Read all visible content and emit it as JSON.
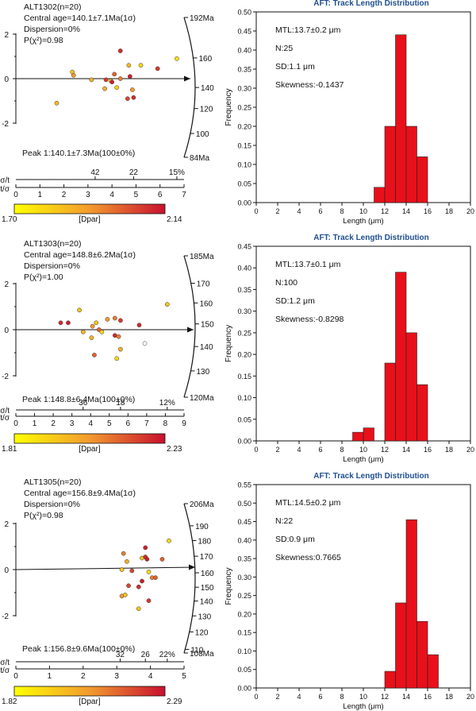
{
  "colorbar": {
    "low_color": "#ffff00",
    "high_color": "#c8102e"
  },
  "chart_data": [
    {
      "type": "radial",
      "sample_label": "ALT1302(n=20)",
      "central_age": "Central age=140.1±7.1Ma(1σ)",
      "dispersion": "Dispersion=0%",
      "p_chi2": "P(χ²)=0.98",
      "peak_label": "Peak 1:140.1±7.3Ma(100±0%)",
      "z_ticks": [
        "2",
        "0",
        "-2"
      ],
      "arc_ticks": [
        {
          "label": "192Ma",
          "age": 192
        },
        {
          "label": "160",
          "age": 160
        },
        {
          "label": "140",
          "age": 140
        },
        {
          "label": "120",
          "age": 120
        },
        {
          "label": "100",
          "age": 100
        },
        {
          "label": "84Ma",
          "age": 84
        }
      ],
      "central_age_value": 140.1,
      "sigma_t_label": "σ/t",
      "sigma_ticks": [
        {
          "label": "42",
          "x": 3.3
        },
        {
          "label": "22",
          "x": 4.9
        },
        {
          "label": "15%",
          "x": 6.7
        }
      ],
      "t_sigma_label": "t/σ",
      "t_sigma_ticks": [
        "0",
        "1",
        "2",
        "3",
        "4",
        "5",
        "6",
        "7"
      ],
      "t_sigma_max": 7,
      "dpar_label": "[Dpar]",
      "dpar_min": "1.70",
      "dpar_max": "2.14",
      "points": [
        {
          "x": 4.35,
          "z": 1.25,
          "d": 0.9
        },
        {
          "x": 6.7,
          "z": 0.9,
          "d": 0.15
        },
        {
          "x": 5.2,
          "z": 0.6,
          "d": 0.2
        },
        {
          "x": 4.7,
          "z": 0.6,
          "d": 0.35
        },
        {
          "x": 5.9,
          "z": 0.45,
          "d": 0.85
        },
        {
          "x": 2.35,
          "z": 0.3,
          "d": 0.3
        },
        {
          "x": 2.4,
          "z": 0.15,
          "d": 0.5
        },
        {
          "x": 4.1,
          "z": 0.2,
          "d": 0.7
        },
        {
          "x": 4.75,
          "z": 0.1,
          "d": 0.95
        },
        {
          "x": 3.75,
          "z": -0.05,
          "d": 0.85
        },
        {
          "x": 3.95,
          "z": -0.1,
          "d": 0.2
        },
        {
          "x": 4.0,
          "z": -0.15,
          "d": 0.95
        },
        {
          "x": 4.35,
          "z": 0.0,
          "d": 0.6
        },
        {
          "x": 3.15,
          "z": -0.05,
          "d": 0.4
        },
        {
          "x": 4.2,
          "z": -0.4,
          "d": 0.25
        },
        {
          "x": 4.85,
          "z": -0.5,
          "d": 0.5
        },
        {
          "x": 3.7,
          "z": -0.45,
          "d": 0.4
        },
        {
          "x": 4.65,
          "z": -0.9,
          "d": 0.8
        },
        {
          "x": 4.9,
          "z": -0.85,
          "d": 0.9
        },
        {
          "x": 1.7,
          "z": -1.1,
          "d": 0.35
        }
      ]
    },
    {
      "type": "bar",
      "title": "AFT: Track Length Distribution",
      "xlabel": "Length (μm)",
      "ylabel": "Frequency",
      "x_ticks": [
        "0",
        "2",
        "4",
        "6",
        "8",
        "10",
        "12",
        "14",
        "16",
        "18",
        "20"
      ],
      "y_ticks": [
        "0.00",
        "0.05",
        "0.10",
        "0.15",
        "0.20",
        "0.25",
        "0.30",
        "0.35",
        "0.40",
        "0.45",
        "0.50"
      ],
      "ylim": [
        0,
        0.5
      ],
      "xlim": [
        0,
        20
      ],
      "bin_width": 1,
      "bars": [
        {
          "x0": 11,
          "value": 0.04
        },
        {
          "x0": 12,
          "value": 0.2
        },
        {
          "x0": 13,
          "value": 0.44
        },
        {
          "x0": 14,
          "value": 0.2
        },
        {
          "x0": 15,
          "value": 0.12
        }
      ],
      "stats": [
        "MTL:13.7±0.2 μm",
        "N:25",
        "SD:1.1 μm",
        "Skewness:-0.1437"
      ]
    },
    {
      "type": "radial",
      "sample_label": "ALT1303(n=20)",
      "central_age": "Central age=148.8±6.2Ma(1σ)",
      "dispersion": "Dispersion=0%",
      "p_chi2": "P(χ²)=1.00",
      "peak_label": "Peak 1:148.8±6.4Ma(100±0%)",
      "z_ticks": [
        "2",
        "0",
        "-2"
      ],
      "arc_ticks": [
        {
          "label": "185Ma",
          "age": 185
        },
        {
          "label": "170",
          "age": 170
        },
        {
          "label": "160",
          "age": 160
        },
        {
          "label": "150",
          "age": 150
        },
        {
          "label": "140",
          "age": 140
        },
        {
          "label": "130",
          "age": 130
        },
        {
          "label": "120Ma",
          "age": 120
        }
      ],
      "central_age_value": 148.8,
      "sigma_t_label": "σ/t",
      "sigma_ticks": [
        {
          "label": "36",
          "x": 3.6
        },
        {
          "label": "18",
          "x": 5.6
        },
        {
          "label": "12%",
          "x": 8.1
        }
      ],
      "t_sigma_label": "t/σ",
      "t_sigma_ticks": [
        "0",
        "1",
        "2",
        "3",
        "4",
        "5",
        "6",
        "7",
        "8",
        "9"
      ],
      "t_sigma_max": 9,
      "dpar_label": "[Dpar]",
      "dpar_min": "1.81",
      "dpar_max": "2.23",
      "points": [
        {
          "x": 8.1,
          "z": 1.1,
          "d": 0.3
        },
        {
          "x": 3.4,
          "z": 0.85,
          "d": 0.3
        },
        {
          "x": 5.3,
          "z": 0.5,
          "d": 0.6
        },
        {
          "x": 5.6,
          "z": 0.4,
          "d": 0.85
        },
        {
          "x": 4.9,
          "z": 0.45,
          "d": 0.5
        },
        {
          "x": 2.4,
          "z": 0.3,
          "d": 0.9
        },
        {
          "x": 2.8,
          "z": 0.3,
          "d": 0.95
        },
        {
          "x": 4.3,
          "z": 0.3,
          "d": 0.3
        },
        {
          "x": 6.6,
          "z": 0.2,
          "d": 0.9
        },
        {
          "x": 4.1,
          "z": 0.15,
          "d": 0.5
        },
        {
          "x": 4.45,
          "z": 0.0,
          "d": 0.7
        },
        {
          "x": 4.6,
          "z": -0.1,
          "d": 0.2
        },
        {
          "x": 3.6,
          "z": -0.1,
          "d": 0.35
        },
        {
          "x": 5.3,
          "z": -0.25,
          "d": 0.9
        },
        {
          "x": 5.5,
          "z": -0.3,
          "d": 0.6
        },
        {
          "x": 4.05,
          "z": -0.35,
          "d": 0.35
        },
        {
          "x": 6.9,
          "z": -0.6,
          "d": -1
        },
        {
          "x": 5.6,
          "z": -0.85,
          "d": 0.4
        },
        {
          "x": 4.2,
          "z": -1.1,
          "d": 0.7
        },
        {
          "x": 5.4,
          "z": -1.25,
          "d": 0.2
        }
      ]
    },
    {
      "type": "bar",
      "title": "AFT: Track Length Distribution",
      "xlabel": "Length (μm)",
      "ylabel": "Frequency",
      "x_ticks": [
        "0",
        "2",
        "4",
        "6",
        "8",
        "10",
        "12",
        "14",
        "16",
        "18",
        "20"
      ],
      "y_ticks": [
        "0.00",
        "0.05",
        "0.10",
        "0.15",
        "0.20",
        "0.25",
        "0.30",
        "0.35",
        "0.40",
        "0.45"
      ],
      "ylim": [
        0,
        0.45
      ],
      "xlim": [
        0,
        20
      ],
      "bin_width": 1,
      "bars": [
        {
          "x0": 9,
          "value": 0.02
        },
        {
          "x0": 10,
          "value": 0.03
        },
        {
          "x0": 12,
          "value": 0.18
        },
        {
          "x0": 13,
          "value": 0.39
        },
        {
          "x0": 14,
          "value": 0.25
        },
        {
          "x0": 15,
          "value": 0.13
        }
      ],
      "stats": [
        "MTL:13.7±0.1 μm",
        "N:100",
        "SD:1.2 μm",
        "Skewness:-0.8298"
      ]
    },
    {
      "type": "radial",
      "sample_label": "ALT1305(n=20)",
      "central_age": "Central age=156.8±9.4Ma(1σ)",
      "dispersion": "Dispersion=0%",
      "p_chi2": "P(χ²)=0.98",
      "peak_label": "Peak 1:156.8±9.6Ma(100±0%)",
      "z_ticks": [
        "2",
        "0",
        "-2"
      ],
      "arc_ticks": [
        {
          "label": "206Ma",
          "age": 206
        },
        {
          "label": "190",
          "age": 190
        },
        {
          "label": "180",
          "age": 180
        },
        {
          "label": "170",
          "age": 170
        },
        {
          "label": "160",
          "age": 160
        },
        {
          "label": "150",
          "age": 150
        },
        {
          "label": "140",
          "age": 140
        },
        {
          "label": "130",
          "age": 130
        },
        {
          "label": "120",
          "age": 120
        },
        {
          "label": "110",
          "age": 110
        },
        {
          "label": "108Ma",
          "age": 108
        }
      ],
      "central_age_value": 156.8,
      "sigma_t_label": "σ/t",
      "sigma_ticks": [
        {
          "label": "32",
          "x": 3.1
        },
        {
          "label": "26",
          "x": 3.85
        },
        {
          "label": "22%",
          "x": 4.5
        }
      ],
      "t_sigma_label": "t/σ",
      "t_sigma_ticks": [
        "0",
        "1",
        "2",
        "3",
        "4",
        "5"
      ],
      "t_sigma_max": 5,
      "dpar_label": "[Dpar]",
      "dpar_min": "1.82",
      "dpar_max": "2.29",
      "points": [
        {
          "x": 4.55,
          "z": 1.25,
          "d": 0.2
        },
        {
          "x": 3.85,
          "z": 0.95,
          "d": 0.95
        },
        {
          "x": 4.35,
          "z": 0.45,
          "d": 0.7
        },
        {
          "x": 3.2,
          "z": 0.7,
          "d": 0.6
        },
        {
          "x": 3.75,
          "z": 0.5,
          "d": 0.3
        },
        {
          "x": 3.85,
          "z": 0.55,
          "d": 0.9
        },
        {
          "x": 3.9,
          "z": 0.45,
          "d": 0.95
        },
        {
          "x": 3.3,
          "z": 0.35,
          "d": 0.4
        },
        {
          "x": 3.15,
          "z": 0.0,
          "d": 0.3
        },
        {
          "x": 3.45,
          "z": -0.05,
          "d": 0.8
        },
        {
          "x": 3.95,
          "z": -0.1,
          "d": 0.2
        },
        {
          "x": 4.05,
          "z": -0.35,
          "d": 0.6
        },
        {
          "x": 4.15,
          "z": -0.35,
          "d": 0.7
        },
        {
          "x": 3.75,
          "z": -0.5,
          "d": 0.95
        },
        {
          "x": 3.35,
          "z": -0.7,
          "d": 0.8
        },
        {
          "x": 3.65,
          "z": -0.75,
          "d": 0.9
        },
        {
          "x": 3.15,
          "z": -1.15,
          "d": 0.5
        },
        {
          "x": 3.25,
          "z": -1.1,
          "d": 0.3
        },
        {
          "x": 3.95,
          "z": -1.35,
          "d": 0.85
        },
        {
          "x": 3.65,
          "z": -1.7,
          "d": 0.3
        }
      ]
    },
    {
      "type": "bar",
      "title": "AFT: Track Length Distribution",
      "xlabel": "Length (μm)",
      "ylabel": "Frequency",
      "x_ticks": [
        "0",
        "2",
        "4",
        "6",
        "8",
        "10",
        "12",
        "14",
        "16",
        "18",
        "20"
      ],
      "y_ticks": [
        "0.00",
        "0.05",
        "0.10",
        "0.15",
        "0.20",
        "0.25",
        "0.30",
        "0.35",
        "0.40",
        "0.45",
        "0.50",
        "0.55"
      ],
      "ylim": [
        0,
        0.55
      ],
      "xlim": [
        0,
        20
      ],
      "bin_width": 1,
      "bars": [
        {
          "x0": 12,
          "value": 0.045
        },
        {
          "x0": 13,
          "value": 0.23
        },
        {
          "x0": 14,
          "value": 0.455
        },
        {
          "x0": 15,
          "value": 0.18
        },
        {
          "x0": 16,
          "value": 0.09
        }
      ],
      "stats": [
        "MTL:14.5±0.2 μm",
        "N:22",
        "SD:0.9 μm",
        "Skewness:0.7665"
      ]
    }
  ]
}
